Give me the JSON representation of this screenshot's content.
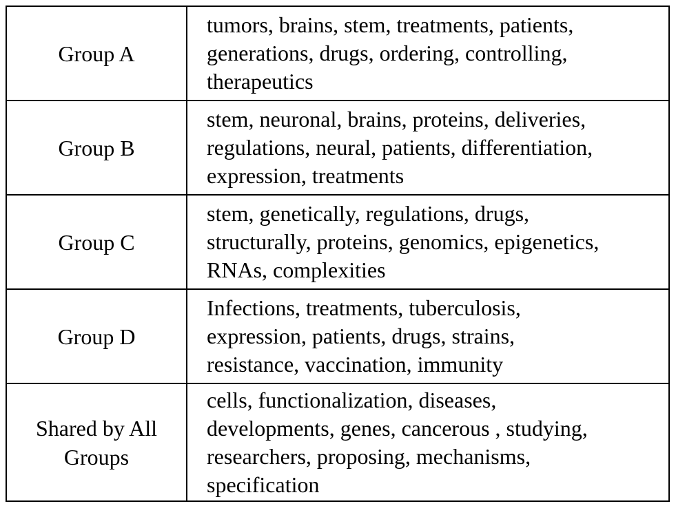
{
  "table": {
    "rows": [
      {
        "group": [
          "Group A"
        ],
        "terms_lines": [
          "tumors, brains, stem, treatments, patients,",
          "generations, drugs, ordering, controlling,",
          "therapeutics"
        ]
      },
      {
        "group": [
          "Group B"
        ],
        "terms_lines": [
          "stem, neuronal, brains, proteins, deliveries,",
          "regulations, neural, patients, differentiation,",
          "expression, treatments"
        ]
      },
      {
        "group": [
          "Group C"
        ],
        "terms_lines": [
          "stem, genetically, regulations, drugs,",
          "structurally, proteins, genomics, epigenetics,",
          "RNAs, complexities"
        ]
      },
      {
        "group": [
          "Group D"
        ],
        "terms_lines": [
          "Infections, treatments, tuberculosis,",
          "expression, patients, drugs, strains,",
          "resistance, vaccination, immunity"
        ]
      },
      {
        "group": [
          "Shared by All",
          "Groups"
        ],
        "terms_lines": [
          "cells, functionalization, diseases,",
          "developments, genes, cancerous , studying,",
          "researchers, proposing, mechanisms,",
          "specification"
        ]
      }
    ]
  }
}
